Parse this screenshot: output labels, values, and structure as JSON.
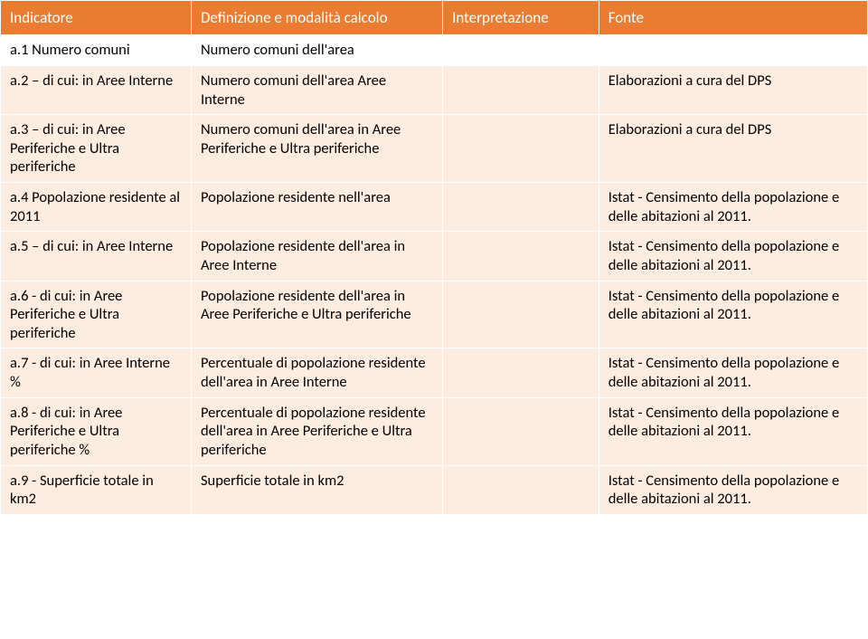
{
  "table": {
    "header_bg": "#e97c30",
    "header_fg": "#ffffff",
    "body_bg": "#fdece0",
    "body_fg": "#000000",
    "border_color": "#ffffff",
    "font_family": "Calibri",
    "header_fontsize": 17,
    "body_fontsize": 16.5,
    "columns": [
      {
        "label": "Indicatore",
        "width_pct": 22
      },
      {
        "label": "Definizione e modalità calcolo",
        "width_pct": 29
      },
      {
        "label": "Interpretazione",
        "width_pct": 18
      },
      {
        "label": "Fonte",
        "width_pct": 31
      }
    ],
    "rows": [
      {
        "indicatore": "a.1 Numero comuni",
        "definizione": "Numero comuni dell'area",
        "interpretazione": "",
        "fonte": ""
      },
      {
        "indicatore": "a.2 – di cui: in Aree Interne",
        "definizione": "Numero comuni dell'area Aree Interne",
        "interpretazione": "",
        "fonte": "Elaborazioni a cura del DPS"
      },
      {
        "indicatore": "a.3 – di cui: in Aree Periferiche e Ultra periferiche",
        "definizione": "Numero comuni dell'area in Aree Periferiche e Ultra periferiche",
        "interpretazione": "",
        "fonte": "Elaborazioni a cura del DPS"
      },
      {
        "indicatore": "a.4 Popolazione residente al 2011",
        "definizione": "Popolazione residente nell'area",
        "interpretazione": "",
        "fonte": "Istat - Censimento della popolazione e delle abitazioni al 2011."
      },
      {
        "indicatore": "a.5 – di cui: in Aree Interne",
        "definizione": "Popolazione residente dell'area in Aree Interne",
        "interpretazione": "",
        "fonte": "Istat - Censimento della popolazione e delle abitazioni al 2011."
      },
      {
        "indicatore": "a.6 - di cui: in Aree Periferiche e Ultra periferiche",
        "definizione": "Popolazione residente dell'area in Aree Periferiche e Ultra periferiche",
        "interpretazione": "",
        "fonte": "Istat - Censimento della popolazione e delle abitazioni al 2011."
      },
      {
        "indicatore": "a.7 - di cui: in Aree Interne %",
        "definizione": "Percentuale di popolazione residente dell'area in Aree Interne",
        "interpretazione": "",
        "fonte": "Istat - Censimento della popolazione e delle abitazioni al 2011."
      },
      {
        "indicatore": "a.8 - di cui: in Aree Periferiche e Ultra periferiche %",
        "definizione": "Percentuale di popolazione residente dell'area in Aree Periferiche e Ultra periferiche",
        "interpretazione": "",
        "fonte": "Istat - Censimento della popolazione e delle abitazioni al 2011."
      },
      {
        "indicatore": "a.9 - Superficie totale in km2",
        "definizione": "Superficie totale in km2",
        "interpretazione": "",
        "fonte": "Istat - Censimento della popolazione e delle abitazioni al 2011."
      }
    ]
  }
}
